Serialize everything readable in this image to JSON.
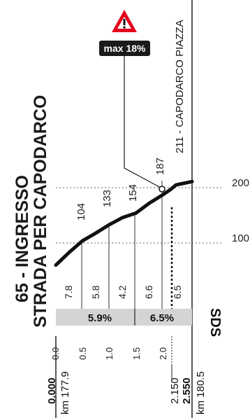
{
  "climb": {
    "title_number_line": "65 - INGRESSO",
    "title_line2": "STRADA PER CAPODARCO"
  },
  "summit_label": "211 - CAPODARCO PIAZZA",
  "max_badge": {
    "text": "max 18%",
    "icon": "warning-triangle-icon",
    "color": "#e3001b"
  },
  "km_start": {
    "offset": "0.000",
    "km": "km 177.9"
  },
  "km_end": {
    "km": "km 180.5"
  },
  "km_marks": [
    "2.150",
    "2.550"
  ],
  "distance_ticks": [
    "0.0",
    "0.5",
    "1.0",
    "1.5",
    "2.0"
  ],
  "segment_gradients": [
    "7.8",
    "5.8",
    "4.2",
    "6.6",
    "6.5"
  ],
  "section_averages": [
    "5.9%",
    "6.5%"
  ],
  "altitude_axis": [
    "200",
    "100"
  ],
  "point_altitudes": [
    "104",
    "133",
    "154",
    "187"
  ],
  "logo_text": "SDS",
  "colors": {
    "profile_line": "#111111",
    "band": "#d4d4d4",
    "accent": "#e3001b"
  },
  "chart_data": {
    "type": "line",
    "x": [
      0.0,
      0.25,
      0.5,
      0.75,
      1.0,
      1.25,
      1.5,
      1.75,
      2.0,
      2.15,
      2.25,
      2.55
    ],
    "y": [
      60,
      83,
      104,
      118,
      133,
      146,
      154,
      172,
      187,
      197,
      205,
      211
    ],
    "xlabel": "km",
    "ylabel": "",
    "xlim": [
      0,
      2.55
    ],
    "ylim": [
      60,
      211
    ]
  }
}
